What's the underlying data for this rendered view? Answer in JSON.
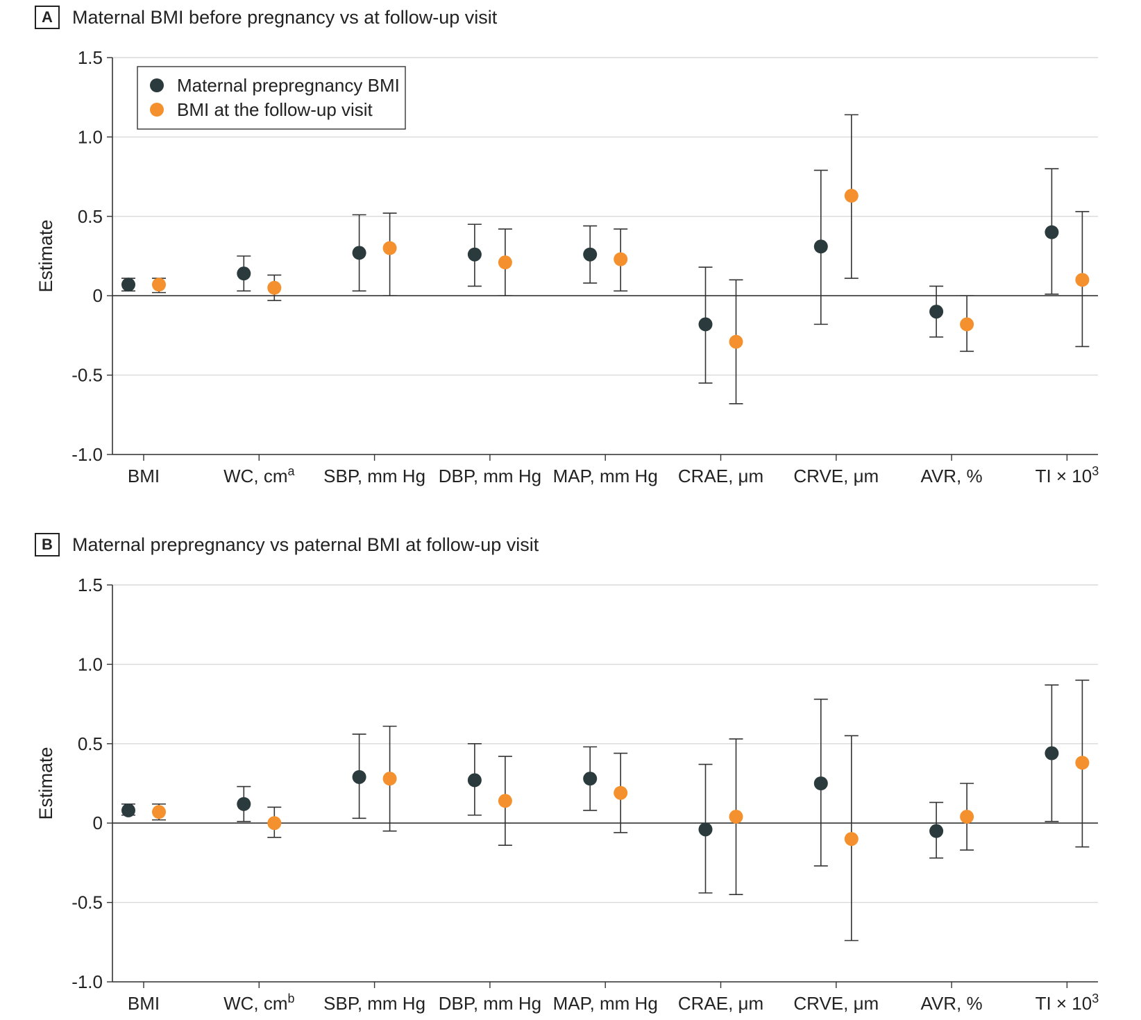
{
  "colors": {
    "maternal": "#2b3a3c",
    "followup": "#f4912e",
    "grid": "#d9d9d9",
    "axis": "#333333"
  },
  "legend": {
    "series1": "Maternal prepregnancy BMI",
    "series2": "BMI at the follow-up visit",
    "placement": "top-left"
  },
  "chart_data": [
    {
      "type": "scatter",
      "panel": "A",
      "title": "Maternal BMI before pregnancy vs at follow-up visit",
      "xlabel": "",
      "ylabel": "Estimate",
      "ylim": [
        -1.0,
        1.5
      ],
      "yticks": [
        1.5,
        1.0,
        0.5,
        0,
        -0.5,
        -1.0
      ],
      "ytick_labels": [
        "1.5",
        "1.0",
        "0.5",
        "0",
        "-0.5",
        "-1.0"
      ],
      "grid": true,
      "categories": [
        {
          "label": "BMI",
          "sup": ""
        },
        {
          "label": "WC, cm",
          "sup": "a"
        },
        {
          "label": "SBP, mm Hg",
          "sup": ""
        },
        {
          "label": "DBP, mm Hg",
          "sup": ""
        },
        {
          "label": "MAP, mm Hg",
          "sup": ""
        },
        {
          "label": "CRAE, μm",
          "sup": ""
        },
        {
          "label": "CRVE, μm",
          "sup": ""
        },
        {
          "label": "AVR, %",
          "sup": ""
        },
        {
          "label": "TI × 10",
          "sup": "3"
        }
      ],
      "series": [
        {
          "name": "Maternal prepregnancy BMI",
          "values": [
            0.07,
            0.14,
            0.27,
            0.26,
            0.26,
            -0.18,
            0.31,
            -0.1,
            0.4
          ],
          "lower": [
            0.03,
            0.03,
            0.03,
            0.06,
            0.08,
            -0.55,
            -0.18,
            -0.26,
            0.01
          ],
          "upper": [
            0.11,
            0.25,
            0.51,
            0.45,
            0.44,
            0.18,
            0.79,
            0.06,
            0.8
          ]
        },
        {
          "name": "BMI at the follow-up visit",
          "values": [
            0.07,
            0.05,
            0.3,
            0.21,
            0.23,
            -0.29,
            0.63,
            -0.18,
            0.1
          ],
          "lower": [
            0.02,
            -0.03,
            0.0,
            0.0,
            0.03,
            -0.68,
            0.11,
            -0.35,
            -0.32
          ],
          "upper": [
            0.11,
            0.13,
            0.52,
            0.42,
            0.42,
            0.1,
            1.14,
            0.0,
            0.53
          ]
        }
      ]
    },
    {
      "type": "scatter",
      "panel": "B",
      "title": "Maternal prepregnancy vs paternal BMI at follow-up visit",
      "xlabel": "",
      "ylabel": "Estimate",
      "ylim": [
        -1.0,
        1.5
      ],
      "yticks": [
        1.5,
        1.0,
        0.5,
        0,
        -0.5,
        -1.0
      ],
      "ytick_labels": [
        "1.5",
        "1.0",
        "0.5",
        "0",
        "-0.5",
        "-1.0"
      ],
      "grid": true,
      "categories": [
        {
          "label": "BMI",
          "sup": ""
        },
        {
          "label": "WC, cm",
          "sup": "b"
        },
        {
          "label": "SBP, mm Hg",
          "sup": ""
        },
        {
          "label": "DBP, mm Hg",
          "sup": ""
        },
        {
          "label": "MAP, mm Hg",
          "sup": ""
        },
        {
          "label": "CRAE, μm",
          "sup": ""
        },
        {
          "label": "CRVE, μm",
          "sup": ""
        },
        {
          "label": "AVR, %",
          "sup": ""
        },
        {
          "label": "TI × 10",
          "sup": "3"
        }
      ],
      "series": [
        {
          "name": "Maternal prepregnancy BMI",
          "values": [
            0.08,
            0.12,
            0.29,
            0.27,
            0.28,
            -0.04,
            0.25,
            -0.05,
            0.44
          ],
          "lower": [
            0.05,
            0.01,
            0.03,
            0.05,
            0.08,
            -0.44,
            -0.27,
            -0.22,
            0.01
          ],
          "upper": [
            0.12,
            0.23,
            0.56,
            0.5,
            0.48,
            0.37,
            0.78,
            0.13,
            0.87
          ]
        },
        {
          "name": "BMI at the follow-up visit",
          "values": [
            0.07,
            0.0,
            0.28,
            0.14,
            0.19,
            0.04,
            -0.1,
            0.04,
            0.38
          ],
          "lower": [
            0.02,
            -0.09,
            -0.05,
            -0.14,
            -0.06,
            -0.45,
            -0.74,
            -0.17,
            -0.15
          ],
          "upper": [
            0.12,
            0.1,
            0.61,
            0.42,
            0.44,
            0.53,
            0.55,
            0.25,
            0.9
          ]
        }
      ]
    }
  ]
}
